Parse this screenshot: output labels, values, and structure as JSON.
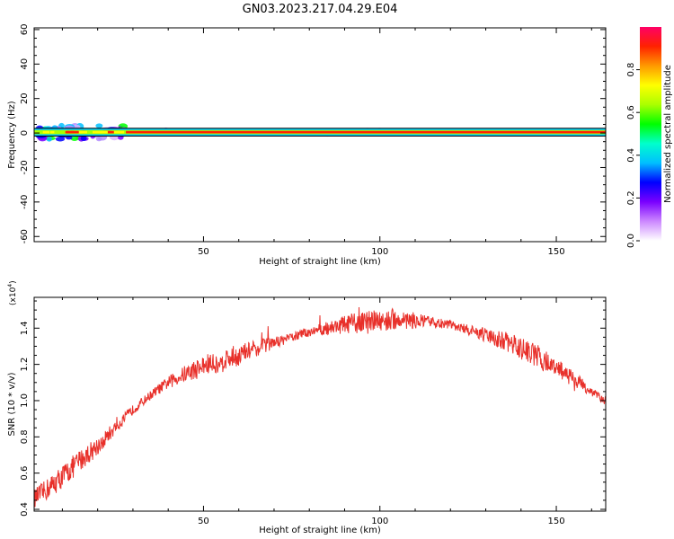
{
  "figure_title": "GN03.2023.217.04.29.E04",
  "chart_data": [
    {
      "type": "heatmap",
      "xlabel": "Height of straight line (km)",
      "ylabel": "Frequency (Hz)",
      "xlim": [
        2,
        164
      ],
      "ylim": [
        -63,
        61
      ],
      "x_ticks": [
        50,
        100,
        150
      ],
      "y_ticks": [
        -60,
        -40,
        -20,
        0,
        20,
        40,
        60
      ],
      "colorbar": {
        "label": "Normalized spectral amplitude",
        "range": [
          0,
          1
        ],
        "ticks": [
          "0.0",
          "0.2",
          "0.4",
          "0.6",
          "0.8"
        ],
        "colors": [
          "#ffffff",
          "#cc88ff",
          "#7a00ff",
          "#0000ff",
          "#00bfff",
          "#00ffcc",
          "#00ff00",
          "#aaff00",
          "#ffff00",
          "#ff9900",
          "#ff2200",
          "#ff0066"
        ]
      },
      "band": {
        "center_frequency_hz": 0.5,
        "half_width_hz": 2,
        "scatter_extent_km": [
          2,
          28
        ],
        "scatter_half_width_hz": 4
      }
    },
    {
      "type": "line",
      "xlabel": "Height of straight line (km)",
      "ylabel": "SNR (10 * v/v)",
      "y_scale_note": "(x10",
      "y_scale_exp": "4",
      "xlim": [
        2,
        164
      ],
      "ylim": [
        0.39,
        1.57
      ],
      "x_ticks": [
        50,
        100,
        150
      ],
      "y_ticks": [
        0.4,
        0.6,
        0.8,
        1.0,
        1.2,
        1.4
      ],
      "color": "#e8302a",
      "series": [
        {
          "x": [
            2,
            5,
            10,
            15,
            20,
            25,
            30,
            35,
            40,
            45,
            50,
            55,
            60,
            65,
            70,
            75,
            80,
            85,
            90,
            95,
            100,
            105,
            110,
            115,
            120,
            125,
            130,
            135,
            140,
            145,
            150,
            155,
            160,
            164
          ],
          "values": [
            0.46,
            0.5,
            0.58,
            0.67,
            0.75,
            0.85,
            0.95,
            1.03,
            1.1,
            1.15,
            1.19,
            1.22,
            1.25,
            1.29,
            1.32,
            1.35,
            1.38,
            1.4,
            1.42,
            1.43,
            1.44,
            1.45,
            1.44,
            1.43,
            1.42,
            1.39,
            1.36,
            1.33,
            1.29,
            1.24,
            1.18,
            1.12,
            1.05,
            1.0
          ]
        }
      ]
    }
  ]
}
